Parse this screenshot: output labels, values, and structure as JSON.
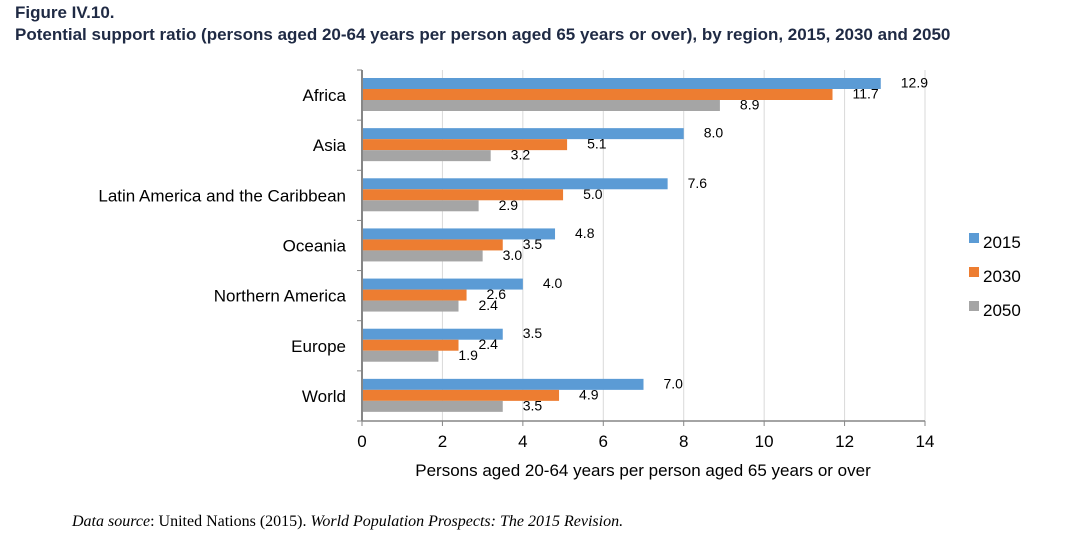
{
  "figure": {
    "number": "Figure IV.10.",
    "title": "Potential support ratio (persons aged 20-64 years per person aged 65 years or over), by region, 2015, 2030 and 2050"
  },
  "source": {
    "label": "Data source",
    "separator": ": ",
    "text": "United Nations (2015). ",
    "publication": "World Population Prospects: The 2015 Revision."
  },
  "chart_data": {
    "type": "bar",
    "orientation": "horizontal",
    "title": "Potential support ratio (persons aged 20-64 years per person aged 65 years or over), by region, 2015, 2030 and 2050",
    "xlabel": "Persons aged 20-64 years per person aged 65 years or over",
    "ylabel": "",
    "xlim": [
      0,
      14
    ],
    "xticks": [
      0,
      2,
      4,
      6,
      8,
      10,
      12,
      14
    ],
    "xtick_labels": [
      "0",
      "2",
      "4",
      "6",
      "8",
      "10",
      "12",
      "14"
    ],
    "grid": "vertical",
    "legend_position": "right",
    "categories": [
      "Africa",
      "Asia",
      "Latin America and the Caribbean",
      "Oceania",
      "Northern America",
      "Europe",
      "World"
    ],
    "series": [
      {
        "name": "2015",
        "color": "#5B9BD5",
        "values": [
          12.9,
          8.0,
          7.6,
          4.8,
          4.0,
          3.5,
          7.0
        ],
        "labels": [
          "12.9",
          "8.0",
          "7.6",
          "4.8",
          "4.0",
          "3.5",
          "7.0"
        ]
      },
      {
        "name": "2030",
        "color": "#ED7D31",
        "values": [
          11.7,
          5.1,
          5.0,
          3.5,
          2.6,
          2.4,
          4.9
        ],
        "labels": [
          "11.7",
          "5.1",
          "5.0",
          "3.5",
          "2.6",
          "2.4",
          "4.9"
        ]
      },
      {
        "name": "2050",
        "color": "#A5A5A5",
        "values": [
          8.9,
          3.2,
          2.9,
          3.0,
          2.4,
          1.9,
          3.5
        ],
        "labels": [
          "8.9",
          "3.2",
          "2.9",
          "3.0",
          "2.4",
          "1.9",
          "3.5"
        ]
      }
    ]
  }
}
